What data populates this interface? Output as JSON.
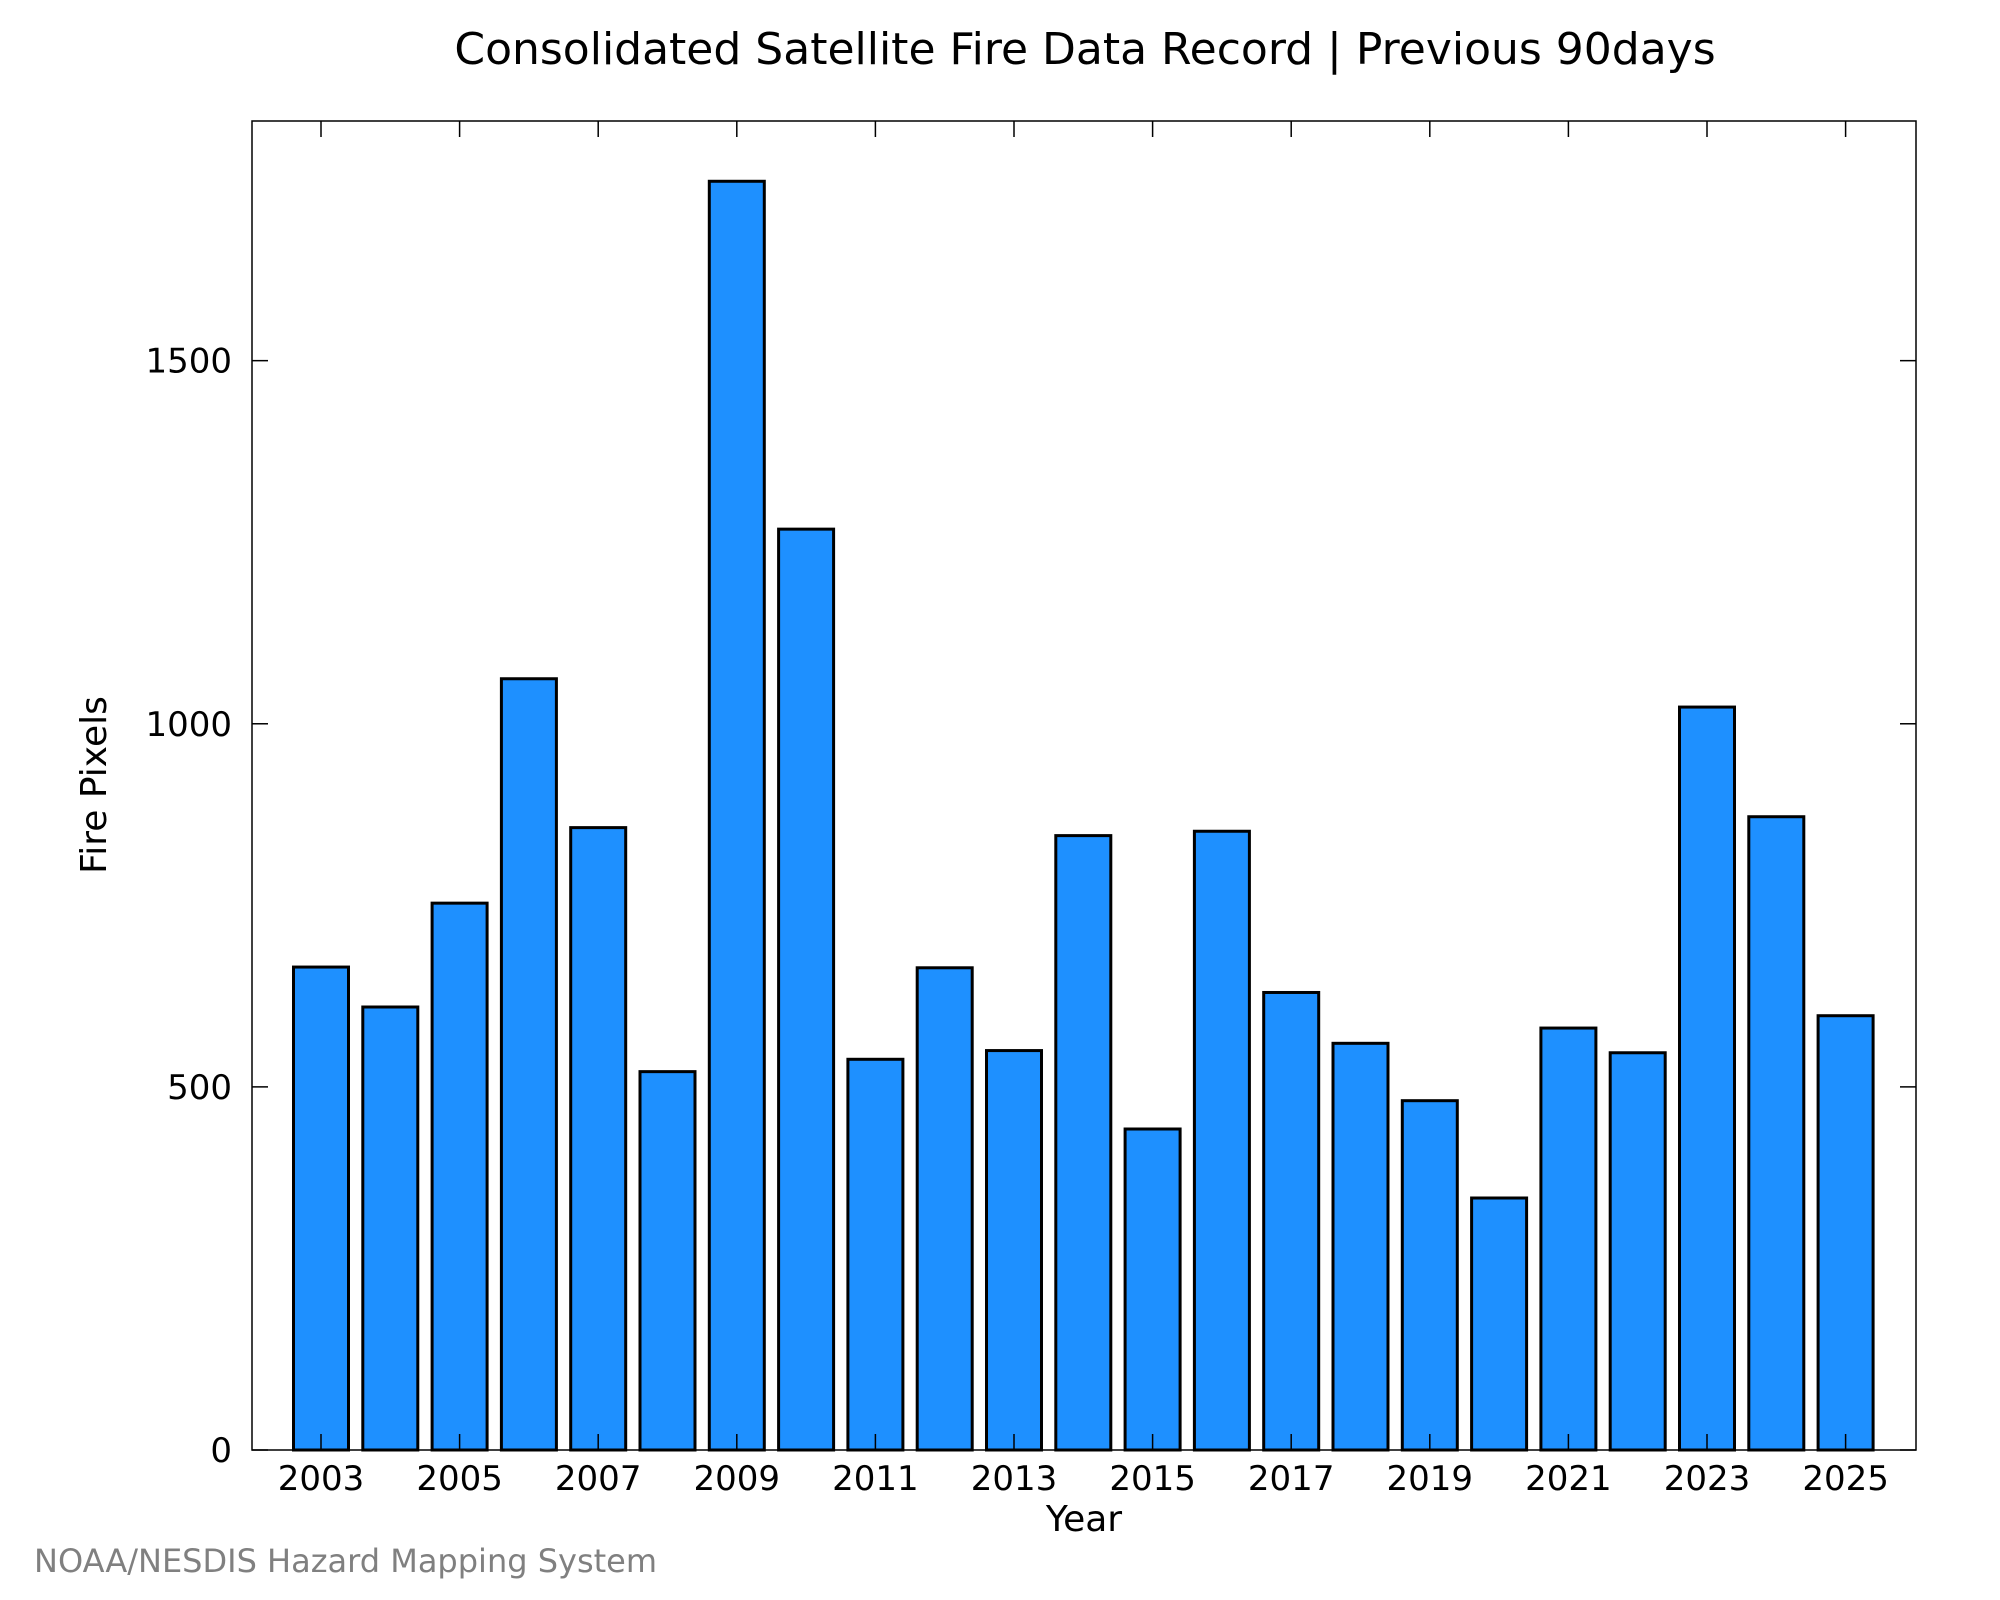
{
  "chart_data": {
    "type": "bar",
    "title": "Consolidated Satellite Fire Data Record | Previous 90days",
    "xlabel": "Year",
    "ylabel": "Fire Pixels",
    "categories": [
      "2003",
      "2004",
      "2005",
      "2006",
      "2007",
      "2008",
      "2009",
      "2010",
      "2011",
      "2012",
      "2013",
      "2014",
      "2015",
      "2016",
      "2017",
      "2018",
      "2019",
      "2020",
      "2021",
      "2022",
      "2023",
      "2024",
      "2025"
    ],
    "values": [
      665,
      610,
      753,
      1062,
      857,
      521,
      1747,
      1268,
      538,
      664,
      550,
      846,
      442,
      852,
      630,
      560,
      481,
      347,
      581,
      547,
      1023,
      872,
      598
    ],
    "x_tick_labels": [
      "2003",
      "2005",
      "2007",
      "2009",
      "2011",
      "2013",
      "2015",
      "2017",
      "2019",
      "2021",
      "2023",
      "2025"
    ],
    "y_tick_labels": [
      "0",
      "500",
      "1000",
      "1500"
    ],
    "ylim": [
      0,
      1830
    ],
    "bar_color": "#1e90ff",
    "grid": false
  },
  "credit": "NOAA/NESDIS Hazard Mapping System"
}
